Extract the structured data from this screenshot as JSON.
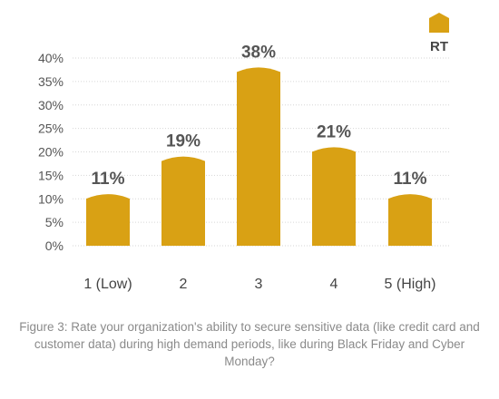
{
  "chart_data": {
    "type": "bar",
    "categories": [
      "1 (Low)",
      "2",
      "3",
      "4",
      "5 (High)"
    ],
    "series": [
      {
        "name": "RT",
        "values": [
          11,
          19,
          38,
          21,
          11
        ],
        "color": "#D9A114"
      }
    ],
    "data_labels": [
      "11%",
      "19%",
      "38%",
      "21%",
      "11%"
    ],
    "yticks": [
      "0%",
      "5%",
      "10%",
      "15%",
      "20%",
      "25%",
      "30%",
      "35%",
      "40%"
    ],
    "ylim": [
      0,
      40
    ],
    "grid": true,
    "legend_position": "top-right"
  },
  "caption": "Figure 3: Rate your organization's ability to secure sensitive data (like credit card and customer data) during high demand periods, like during Black Friday and Cyber Monday?"
}
